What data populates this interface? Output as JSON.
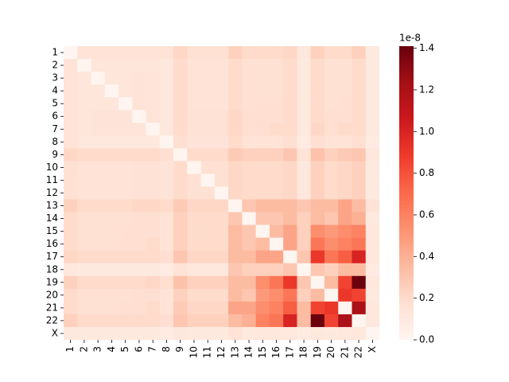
{
  "chart_data": {
    "type": "heatmap",
    "cmap": "Reds",
    "x_categories": [
      "1",
      "2",
      "3",
      "4",
      "5",
      "6",
      "7",
      "8",
      "9",
      "10",
      "11",
      "12",
      "13",
      "14",
      "15",
      "16",
      "17",
      "18",
      "19",
      "20",
      "21",
      "22",
      "X"
    ],
    "y_categories": [
      "1",
      "2",
      "3",
      "4",
      "5",
      "6",
      "7",
      "8",
      "9",
      "10",
      "11",
      "12",
      "13",
      "14",
      "15",
      "16",
      "17",
      "18",
      "19",
      "20",
      "21",
      "22",
      "X"
    ],
    "values": [
      [
        0,
        0.15,
        0.15,
        0.15,
        0.15,
        0.15,
        0.15,
        0.15,
        0.22,
        0.17,
        0.17,
        0.17,
        0.25,
        0.2,
        0.2,
        0.2,
        0.22,
        0.12,
        0.25,
        0.2,
        0.2,
        0.25,
        0.1
      ],
      [
        0.15,
        0,
        0.13,
        0.13,
        0.13,
        0.13,
        0.13,
        0.12,
        0.2,
        0.15,
        0.15,
        0.15,
        0.2,
        0.17,
        0.17,
        0.17,
        0.2,
        0.1,
        0.2,
        0.17,
        0.17,
        0.2,
        0.1
      ],
      [
        0.15,
        0.13,
        0,
        0.13,
        0.13,
        0.14,
        0.14,
        0.12,
        0.2,
        0.15,
        0.15,
        0.15,
        0.2,
        0.17,
        0.17,
        0.17,
        0.2,
        0.1,
        0.2,
        0.17,
        0.17,
        0.2,
        0.1
      ],
      [
        0.15,
        0.13,
        0.13,
        0,
        0.13,
        0.14,
        0.14,
        0.12,
        0.2,
        0.15,
        0.15,
        0.15,
        0.2,
        0.17,
        0.17,
        0.17,
        0.2,
        0.1,
        0.2,
        0.17,
        0.17,
        0.2,
        0.1
      ],
      [
        0.15,
        0.13,
        0.13,
        0.13,
        0,
        0.14,
        0.14,
        0.12,
        0.2,
        0.15,
        0.15,
        0.15,
        0.2,
        0.17,
        0.18,
        0.18,
        0.2,
        0.1,
        0.2,
        0.17,
        0.18,
        0.2,
        0.1
      ],
      [
        0.15,
        0.13,
        0.14,
        0.14,
        0.14,
        0,
        0.14,
        0.12,
        0.2,
        0.16,
        0.16,
        0.16,
        0.22,
        0.18,
        0.18,
        0.18,
        0.2,
        0.1,
        0.2,
        0.18,
        0.18,
        0.2,
        0.1
      ],
      [
        0.15,
        0.13,
        0.14,
        0.14,
        0.14,
        0.14,
        0,
        0.12,
        0.2,
        0.16,
        0.16,
        0.16,
        0.22,
        0.18,
        0.18,
        0.2,
        0.2,
        0.1,
        0.22,
        0.18,
        0.2,
        0.2,
        0.1
      ],
      [
        0.15,
        0.12,
        0.12,
        0.12,
        0.12,
        0.12,
        0.12,
        0,
        0.18,
        0.14,
        0.14,
        0.14,
        0.2,
        0.15,
        0.15,
        0.15,
        0.18,
        0.08,
        0.18,
        0.15,
        0.15,
        0.18,
        0.08
      ],
      [
        0.22,
        0.2,
        0.2,
        0.2,
        0.2,
        0.2,
        0.2,
        0.18,
        0,
        0.2,
        0.2,
        0.2,
        0.28,
        0.25,
        0.25,
        0.25,
        0.3,
        0.15,
        0.32,
        0.25,
        0.28,
        0.3,
        0.12
      ],
      [
        0.17,
        0.15,
        0.15,
        0.15,
        0.15,
        0.16,
        0.16,
        0.14,
        0.2,
        0,
        0.17,
        0.17,
        0.22,
        0.2,
        0.2,
        0.2,
        0.22,
        0.12,
        0.25,
        0.2,
        0.22,
        0.25,
        0.1
      ],
      [
        0.17,
        0.15,
        0.15,
        0.15,
        0.15,
        0.16,
        0.16,
        0.14,
        0.2,
        0.17,
        0,
        0.17,
        0.22,
        0.2,
        0.2,
        0.2,
        0.22,
        0.12,
        0.25,
        0.2,
        0.22,
        0.25,
        0.1
      ],
      [
        0.17,
        0.15,
        0.15,
        0.15,
        0.15,
        0.16,
        0.16,
        0.14,
        0.2,
        0.17,
        0.17,
        0,
        0.22,
        0.2,
        0.2,
        0.2,
        0.22,
        0.12,
        0.25,
        0.2,
        0.22,
        0.25,
        0.1
      ],
      [
        0.25,
        0.2,
        0.2,
        0.2,
        0.2,
        0.22,
        0.22,
        0.2,
        0.28,
        0.22,
        0.22,
        0.22,
        0,
        0.3,
        0.35,
        0.35,
        0.35,
        0.3,
        0.35,
        0.35,
        0.45,
        0.35,
        0.15
      ],
      [
        0.2,
        0.17,
        0.17,
        0.17,
        0.17,
        0.18,
        0.18,
        0.15,
        0.25,
        0.2,
        0.2,
        0.2,
        0.3,
        0,
        0.3,
        0.3,
        0.35,
        0.25,
        0.35,
        0.3,
        0.45,
        0.4,
        0.1
      ],
      [
        0.2,
        0.17,
        0.17,
        0.17,
        0.18,
        0.18,
        0.18,
        0.15,
        0.25,
        0.2,
        0.2,
        0.2,
        0.35,
        0.3,
        0,
        0.35,
        0.45,
        0.25,
        0.55,
        0.5,
        0.55,
        0.6,
        0.12
      ],
      [
        0.2,
        0.17,
        0.17,
        0.17,
        0.18,
        0.18,
        0.2,
        0.15,
        0.25,
        0.2,
        0.2,
        0.2,
        0.35,
        0.3,
        0.35,
        0,
        0.45,
        0.25,
        0.65,
        0.55,
        0.6,
        0.65,
        0.12
      ],
      [
        0.22,
        0.2,
        0.2,
        0.2,
        0.2,
        0.2,
        0.2,
        0.18,
        0.3,
        0.22,
        0.22,
        0.22,
        0.35,
        0.35,
        0.45,
        0.45,
        0,
        0.3,
        0.9,
        0.65,
        0.75,
        1.0,
        0.12
      ],
      [
        0.12,
        0.1,
        0.1,
        0.1,
        0.1,
        0.1,
        0.1,
        0.08,
        0.15,
        0.12,
        0.12,
        0.12,
        0.3,
        0.25,
        0.25,
        0.25,
        0.3,
        0,
        0.3,
        0.25,
        0.35,
        0.35,
        0.08
      ],
      [
        0.25,
        0.2,
        0.2,
        0.2,
        0.2,
        0.2,
        0.22,
        0.18,
        0.32,
        0.25,
        0.25,
        0.25,
        0.35,
        0.35,
        0.55,
        0.65,
        0.9,
        0.3,
        0,
        0.35,
        0.85,
        1.4,
        0.12
      ],
      [
        0.2,
        0.17,
        0.17,
        0.17,
        0.17,
        0.18,
        0.18,
        0.15,
        0.25,
        0.2,
        0.2,
        0.2,
        0.35,
        0.3,
        0.5,
        0.55,
        0.65,
        0.25,
        0.35,
        0,
        0.9,
        0.85,
        0.1
      ],
      [
        0.2,
        0.17,
        0.17,
        0.17,
        0.18,
        0.18,
        0.2,
        0.15,
        0.28,
        0.22,
        0.22,
        0.22,
        0.45,
        0.45,
        0.55,
        0.6,
        0.75,
        0.35,
        0.85,
        0.9,
        0,
        1.2,
        0.12
      ],
      [
        0.25,
        0.2,
        0.2,
        0.2,
        0.2,
        0.2,
        0.2,
        0.18,
        0.3,
        0.25,
        0.25,
        0.25,
        0.35,
        0.4,
        0.6,
        0.65,
        1.0,
        0.35,
        1.4,
        0.85,
        1.2,
        0,
        0.12
      ],
      [
        0.1,
        0.1,
        0.1,
        0.1,
        0.1,
        0.1,
        0.1,
        0.08,
        0.12,
        0.1,
        0.1,
        0.1,
        0.15,
        0.1,
        0.12,
        0.12,
        0.12,
        0.08,
        0.12,
        0.1,
        0.12,
        0.12,
        0
      ]
    ],
    "clim": [
      0,
      1.41
    ],
    "cticks": [
      {
        "value": 0,
        "label": "0.0"
      },
      {
        "value": 0.2,
        "label": "0.2"
      },
      {
        "value": 0.4,
        "label": "0.4"
      },
      {
        "value": 0.6,
        "label": "0.6"
      },
      {
        "value": 0.8,
        "label": "0.8"
      },
      {
        "value": 1.0,
        "label": "1.0"
      },
      {
        "value": 1.2,
        "label": "1.2"
      },
      {
        "value": 1.4,
        "label": "1.4"
      }
    ],
    "colorbar_offset_label": "1e-8"
  }
}
